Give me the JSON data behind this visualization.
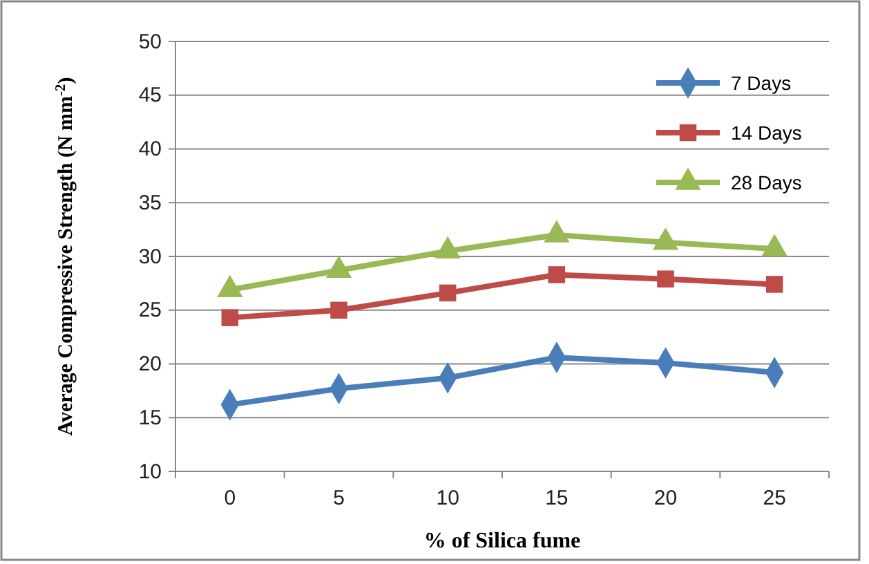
{
  "chart_data": {
    "type": "line",
    "xlabel": "% of Silica fume",
    "ylabel": "Average Compressive Strength (N mm$^{-2}$)",
    "categories": [
      "0",
      "5",
      "10",
      "15",
      "20",
      "25"
    ],
    "series": [
      {
        "name": "7 Days",
        "color": "#4a7ebb",
        "marker": "diamond",
        "values": [
          16.2,
          17.7,
          18.7,
          20.6,
          20.1,
          19.2
        ]
      },
      {
        "name": "14 Days",
        "color": "#be4b48",
        "marker": "square",
        "values": [
          24.3,
          25.0,
          26.6,
          28.3,
          27.9,
          27.4
        ]
      },
      {
        "name": "28 Days",
        "color": "#98b954",
        "marker": "triangle",
        "values": [
          26.9,
          28.7,
          30.5,
          32.0,
          31.3,
          30.7
        ]
      }
    ],
    "ylim": [
      10,
      50
    ],
    "yticks": [
      10,
      15,
      20,
      25,
      30,
      35,
      40,
      45,
      50
    ],
    "grid": "y",
    "legend": "top right",
    "line_style": "solid"
  }
}
